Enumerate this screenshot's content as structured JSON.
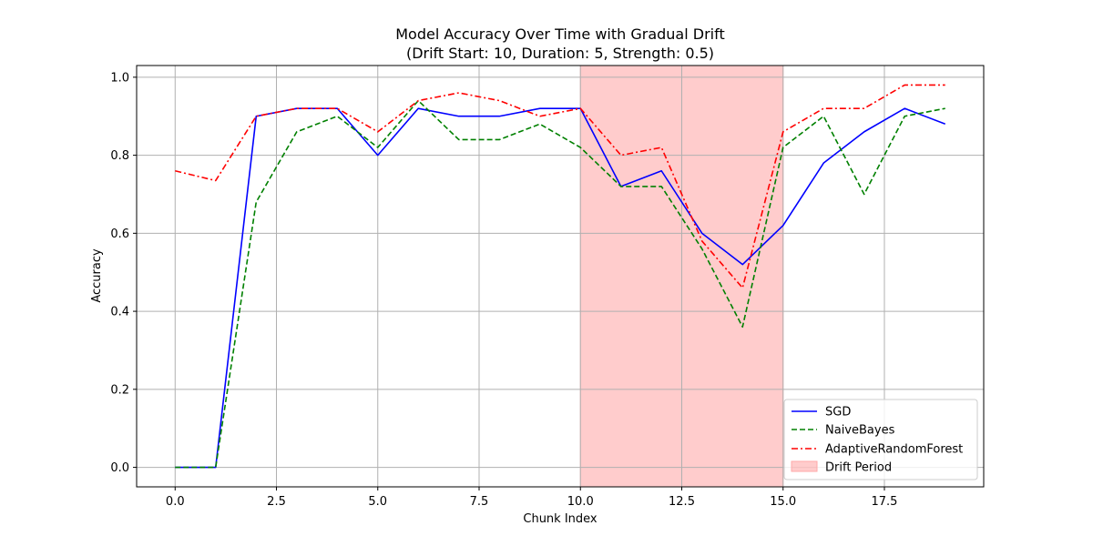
{
  "chart_data": {
    "type": "line",
    "title": "Model Accuracy Over Time with Gradual Drift",
    "subtitle": "(Drift Start: 10, Duration: 5, Strength: 0.5)",
    "xlabel": "Chunk Index",
    "ylabel": "Accuracy",
    "xlim": [
      -0.95,
      19.95
    ],
    "ylim": [
      -0.05,
      1.03
    ],
    "xticks": [
      0,
      2.5,
      5,
      7.5,
      10,
      12.5,
      15,
      17.5
    ],
    "xtick_labels": [
      "0.0",
      "2.5",
      "5.0",
      "7.5",
      "10.0",
      "12.5",
      "15.0",
      "17.5"
    ],
    "yticks": [
      0,
      0.2,
      0.4,
      0.6,
      0.8,
      1.0
    ],
    "ytick_labels": [
      "0.0",
      "0.2",
      "0.4",
      "0.6",
      "0.8",
      "1.0"
    ],
    "grid": true,
    "legend_position": "bottom-right",
    "x": [
      0,
      1,
      2,
      3,
      4,
      5,
      6,
      7,
      8,
      9,
      10,
      11,
      12,
      13,
      14,
      15,
      16,
      17,
      18,
      19
    ],
    "series": [
      {
        "name": "SGD",
        "color": "#0000ff",
        "style": "solid",
        "values": [
          0.0,
          0.0,
          0.9,
          0.92,
          0.92,
          0.8,
          0.92,
          0.9,
          0.9,
          0.92,
          0.92,
          0.72,
          0.76,
          0.6,
          0.52,
          0.62,
          0.78,
          0.86,
          0.92,
          0.88
        ]
      },
      {
        "name": "NaiveBayes",
        "color": "#008000",
        "style": "dashed",
        "values": [
          0.0,
          0.0,
          0.68,
          0.86,
          0.9,
          0.82,
          0.94,
          0.84,
          0.84,
          0.88,
          0.82,
          0.72,
          0.72,
          0.56,
          0.36,
          0.82,
          0.9,
          0.7,
          0.9,
          0.92
        ]
      },
      {
        "name": "AdaptiveRandomForest",
        "color": "#ff0000",
        "style": "dashdot",
        "values": [
          0.76,
          0.735,
          0.9,
          0.92,
          0.92,
          0.86,
          0.94,
          0.96,
          0.94,
          0.9,
          0.92,
          0.8,
          0.82,
          0.58,
          0.46,
          0.86,
          0.92,
          0.92,
          0.98,
          0.98
        ]
      }
    ],
    "shaded_region": {
      "name": "Drift Period",
      "x_start": 10,
      "x_end": 15,
      "color": "#ff0000",
      "opacity": 0.2
    }
  }
}
